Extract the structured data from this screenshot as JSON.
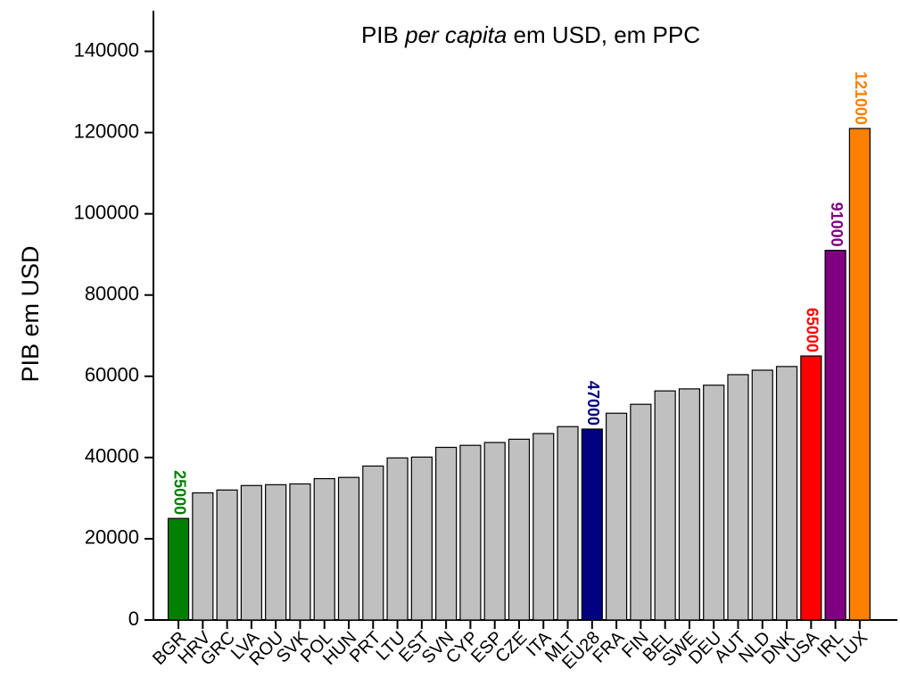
{
  "chart_data": {
    "type": "bar",
    "title_parts": [
      {
        "text": "PIB "
      },
      {
        "text": "per capita",
        "italic": true
      },
      {
        "text": " em USD, em PPC"
      }
    ],
    "y_label": "PIB em USD",
    "categories": [
      "BGR",
      "HRV",
      "GRC",
      "LVA",
      "ROU",
      "SVK",
      "POL",
      "HUN",
      "PRT",
      "LTU",
      "EST",
      "SVN",
      "CYP",
      "ESP",
      "CZE",
      "ITA",
      "MLT",
      "EU28",
      "FRA",
      "FIN",
      "BEL",
      "SWE",
      "DEU",
      "AUT",
      "NLD",
      "DNK",
      "USA",
      "IRL",
      "LUX"
    ],
    "values": [
      25000,
      31300,
      32000,
      33100,
      33300,
      33500,
      34800,
      35100,
      37900,
      39900,
      40100,
      42500,
      43000,
      43700,
      44500,
      45900,
      47600,
      47000,
      50900,
      53100,
      56400,
      56900,
      57800,
      60400,
      61500,
      62400,
      65000,
      91000,
      121000
    ],
    "color": "#c0c0c0",
    "highlight_colors": {
      "BGR": "#008000",
      "EU28": "#000080",
      "USA": "#ff0000",
      "IRL": "#800080",
      "LUX": "#ff8000"
    },
    "ylim": [
      0,
      150000
    ],
    "yticks": [
      0,
      20000,
      40000,
      60000,
      80000,
      100000,
      120000,
      140000
    ]
  }
}
